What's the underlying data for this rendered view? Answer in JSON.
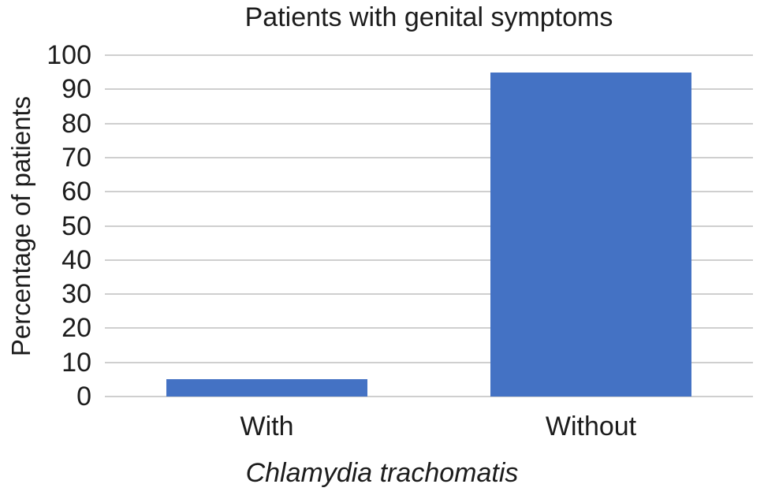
{
  "chart_data": {
    "type": "bar",
    "title": "Patients with genital symptoms",
    "categories": [
      "With",
      "Without"
    ],
    "values": [
      5,
      95
    ],
    "xlabel": "Chlamydia trachomatis",
    "ylabel": "Percentage of patients",
    "yticks": [
      0,
      10,
      20,
      30,
      40,
      50,
      60,
      70,
      80,
      90,
      100
    ],
    "ylim": [
      0,
      100
    ],
    "grid": true,
    "legend": false,
    "bar_color": "#4472C4",
    "gridline_color": "#cfcfcf",
    "text_color": "#1c1c1c",
    "background_color": "#ffffff"
  }
}
